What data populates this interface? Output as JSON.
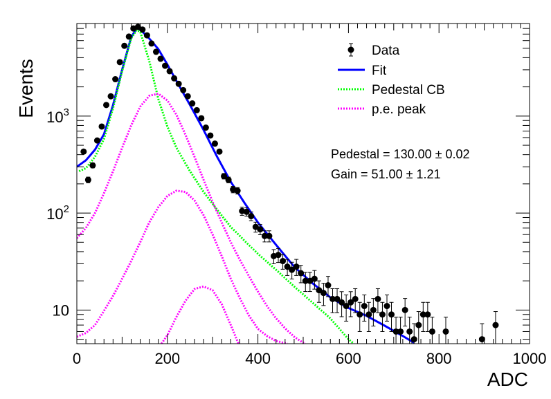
{
  "chart_data": {
    "type": "scatter",
    "title": "",
    "xlabel": "ADC",
    "ylabel": "Events",
    "xlim": [
      0,
      1000
    ],
    "ylim": [
      4.5,
      9000
    ],
    "y_scale": "log",
    "grid": false,
    "legend_position": "top-right",
    "x_ticks": [
      "0",
      "200",
      "400",
      "600",
      "800",
      "1000"
    ],
    "y_ticks": [
      {
        "value": 10,
        "label": "10"
      },
      {
        "value": 100,
        "label": "10^2"
      },
      {
        "value": 1000,
        "label": "10^3"
      }
    ],
    "annotations": [
      "Pedestal = 130.00 ± 0.02",
      "Gain = 51.00 ± 1.21"
    ],
    "series": [
      {
        "name": "Data",
        "style": "markers",
        "color": "#000000",
        "x": [
          15,
          25,
          35,
          45,
          55,
          65,
          75,
          85,
          95,
          105,
          115,
          125,
          135,
          145,
          155,
          165,
          175,
          185,
          195,
          205,
          215,
          225,
          235,
          245,
          255,
          265,
          275,
          285,
          295,
          305,
          315,
          325,
          335,
          345,
          355,
          365,
          375,
          385,
          395,
          405,
          415,
          425,
          435,
          445,
          455,
          465,
          475,
          485,
          495,
          505,
          515,
          525,
          535,
          545,
          555,
          565,
          575,
          585,
          595,
          605,
          615,
          625,
          635,
          645,
          655,
          665,
          675,
          685,
          695,
          705,
          715,
          725,
          735,
          745,
          755,
          765,
          775,
          785,
          815,
          895,
          925
        ],
        "y": [
          430,
          220,
          310,
          560,
          780,
          1300,
          1600,
          2400,
          3600,
          5300,
          6600,
          8000,
          8300,
          7800,
          6800,
          5600,
          4600,
          3900,
          3300,
          2900,
          2450,
          2150,
          1850,
          1600,
          1350,
          1150,
          950,
          760,
          630,
          520,
          430,
          240,
          220,
          175,
          170,
          105,
          103,
          93,
          72,
          68,
          58,
          58,
          36,
          37,
          32,
          28,
          26,
          28,
          24,
          20,
          20,
          21,
          16,
          15,
          18,
          13,
          13,
          12,
          11,
          12,
          13,
          9,
          11,
          9,
          10,
          13,
          9,
          11,
          9,
          6,
          6,
          10,
          6,
          5,
          7,
          9,
          9,
          6,
          6,
          5,
          7
        ]
      },
      {
        "name": "Fit",
        "style": "line",
        "color": "#0000ff",
        "x": [
          0,
          20,
          40,
          60,
          80,
          100,
          120,
          132,
          140,
          160,
          180,
          200,
          220,
          250,
          280,
          310,
          340,
          370,
          400,
          440,
          480,
          520,
          560,
          600,
          640,
          680,
          720,
          745
        ],
        "y": [
          300,
          350,
          450,
          650,
          1300,
          3000,
          6500,
          8000,
          7800,
          6300,
          4900,
          3400,
          2300,
          1300,
          720,
          380,
          210,
          128,
          80,
          47,
          28,
          19,
          13.5,
          10.5,
          8.7,
          6.9,
          5.4,
          4.6
        ]
      },
      {
        "name": "Pedestal CB",
        "style": "dotted",
        "color": "#00ff00",
        "x": [
          5,
          20,
          40,
          60,
          80,
          100,
          120,
          132,
          140,
          160,
          180,
          200,
          220,
          250,
          280,
          310,
          340,
          370,
          400,
          440,
          480,
          520,
          560,
          600,
          612
        ],
        "y": [
          270,
          290,
          380,
          580,
          1200,
          2900,
          6300,
          7700,
          7400,
          3700,
          1500,
          780,
          470,
          270,
          165,
          108,
          72,
          52,
          38,
          26,
          17.5,
          12,
          8.2,
          5,
          4.5
        ]
      },
      {
        "name": "p.e. peak",
        "style": "dotted",
        "color": "#ff00ff",
        "curves": [
          {
            "x": [
              0,
              20,
              40,
              60,
              80,
              100,
              120,
              140,
              160,
              180,
              200,
              220,
              240,
              260,
              280,
              300,
              320,
              340,
              360,
              380,
              400,
              420,
              440,
              460,
              480,
              500,
              505
            ],
            "y": [
              55,
              70,
              100,
              160,
              270,
              470,
              800,
              1250,
              1620,
              1700,
              1450,
              1030,
              640,
              380,
              220,
              130,
              80,
              50,
              33,
              22.5,
              15.5,
              11,
              8.2,
              6.5,
              5.3,
              4.6,
              4.5
            ]
          },
          {
            "x": [
              0,
              20,
              40,
              60,
              80,
              100,
              120,
              140,
              160,
              180,
              200,
              220,
              240,
              260,
              280,
              300,
              320,
              340,
              360,
              380,
              400,
              420,
              440,
              465
            ],
            "y": [
              5.3,
              5.8,
              7,
              9.8,
              14,
              21,
              32,
              50,
              80,
              115,
              150,
              170,
              165,
              135,
              95,
              60,
              36,
              21,
              13.3,
              8.8,
              6.4,
              5.4,
              4.8,
              4.5
            ]
          },
          {
            "x": [
              187,
              200,
              220,
              240,
              260,
              280,
              300,
              320,
              340,
              357
            ],
            "y": [
              4.5,
              5.5,
              8.5,
              12.5,
              16.5,
              17.5,
              16,
              11.5,
              7,
              4.5
            ]
          }
        ]
      }
    ]
  }
}
